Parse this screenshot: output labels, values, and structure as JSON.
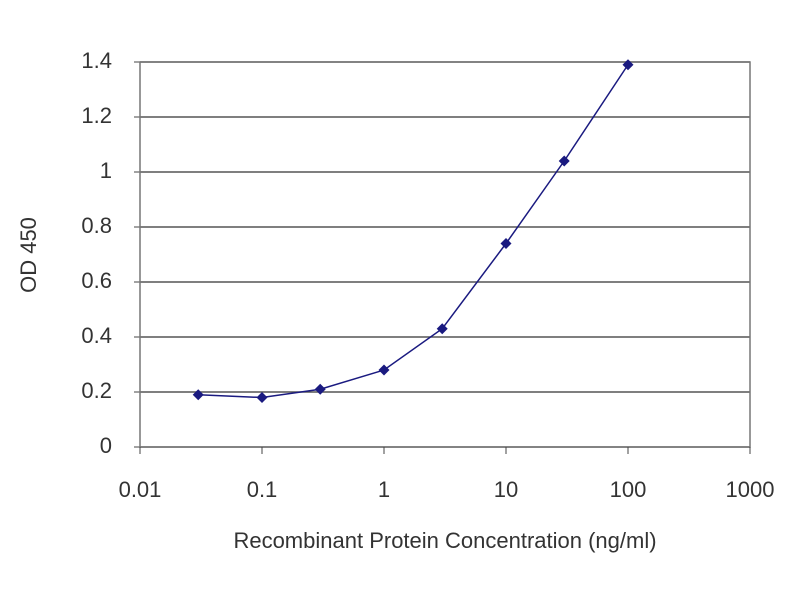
{
  "chart_data": {
    "type": "line",
    "x_label": "Recombinant Protein Concentration (ng/ml)",
    "y_label": "OD 450",
    "x": [
      0.03,
      0.1,
      0.3,
      1,
      3,
      10,
      30,
      100
    ],
    "series": [
      {
        "color": "#1a1a80",
        "values": [
          0.19,
          0.18,
          0.21,
          0.28,
          0.43,
          0.74,
          1.04,
          1.39
        ]
      }
    ],
    "xscale": "log",
    "xlim": [
      0.01,
      1000
    ],
    "xticks": [
      0.01,
      0.1,
      1,
      10,
      100,
      1000
    ],
    "ylim": [
      0,
      1.4
    ],
    "yticks": [
      0,
      0.2,
      0.4,
      0.6,
      0.8,
      1,
      1.2,
      1.4
    ],
    "grid": true
  }
}
